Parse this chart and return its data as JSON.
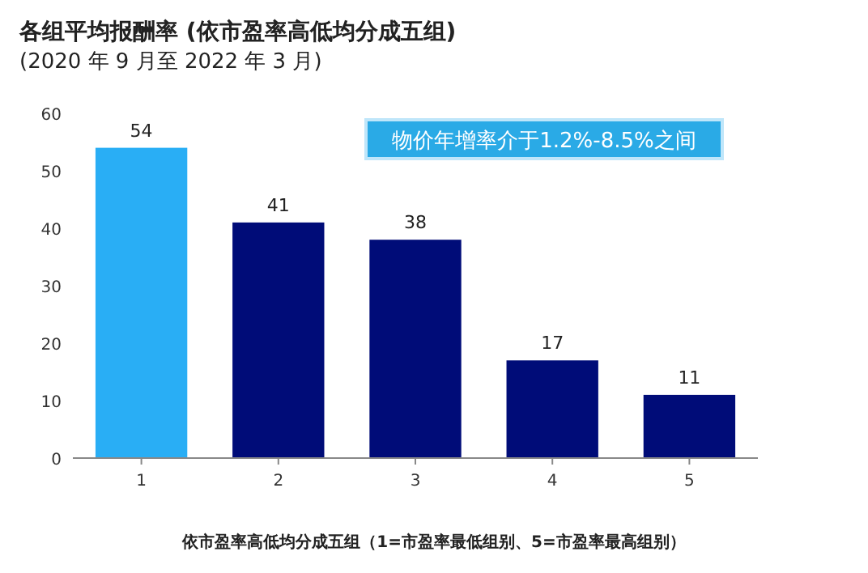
{
  "chart_data": {
    "type": "bar",
    "title": "各组平均报酬率 (依市盈率高低均分成五组)",
    "subtitle": "(2020 年 9 月至 2022 年 3 月)",
    "xlabel": "依市盈率高低均分成五组（1=市盈率最低组别、5=市盈率最高组别）",
    "categories": [
      "1",
      "2",
      "3",
      "4",
      "5"
    ],
    "values": [
      54,
      41,
      38,
      17,
      11
    ],
    "colors": [
      "#29aef5",
      "#000c78",
      "#000c78",
      "#000c78",
      "#000c78"
    ],
    "ylim": [
      0,
      60
    ],
    "yticks": [
      0,
      10,
      20,
      30,
      40,
      50,
      60
    ],
    "data_labels": true,
    "annotations": [
      "物价年增率介于1.2%-8.5%之间"
    ]
  }
}
